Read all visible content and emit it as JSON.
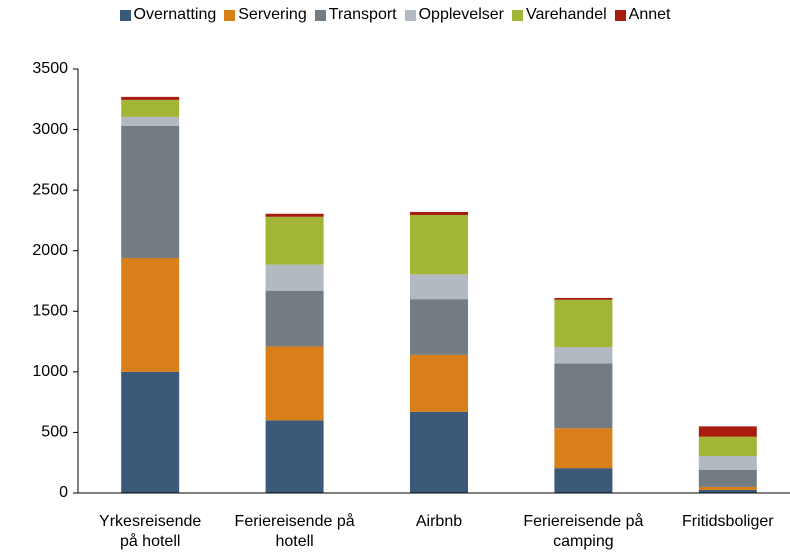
{
  "chart_data": {
    "type": "stacked_bar",
    "categories": [
      "Yrkesreisende\npå hotell",
      "Feriereisende på\nhotell",
      "Airbnb",
      "Feriereisende på\ncamping",
      "Fritidsboliger"
    ],
    "series": [
      {
        "name": "Overnatting",
        "color": "#3b5a7a",
        "values": [
          1000,
          600,
          670,
          205,
          25
        ]
      },
      {
        "name": "Servering",
        "color": "#d97f1a",
        "values": [
          940,
          610,
          470,
          330,
          25
        ]
      },
      {
        "name": "Transport",
        "color": "#737b83",
        "values": [
          1090,
          460,
          460,
          535,
          140
        ]
      },
      {
        "name": "Opplevelser",
        "color": "#b3b9c0",
        "values": [
          75,
          215,
          205,
          135,
          115
        ]
      },
      {
        "name": "Varehandel",
        "color": "#a3b536",
        "values": [
          140,
          395,
          490,
          390,
          160
        ]
      },
      {
        "name": "Annet",
        "color": "#a81c0f",
        "values": [
          25,
          25,
          25,
          15,
          85
        ]
      }
    ],
    "ylim": [
      0,
      3500
    ],
    "yticks": [
      0,
      500,
      1000,
      1500,
      2000,
      2500,
      3000,
      3500
    ]
  }
}
